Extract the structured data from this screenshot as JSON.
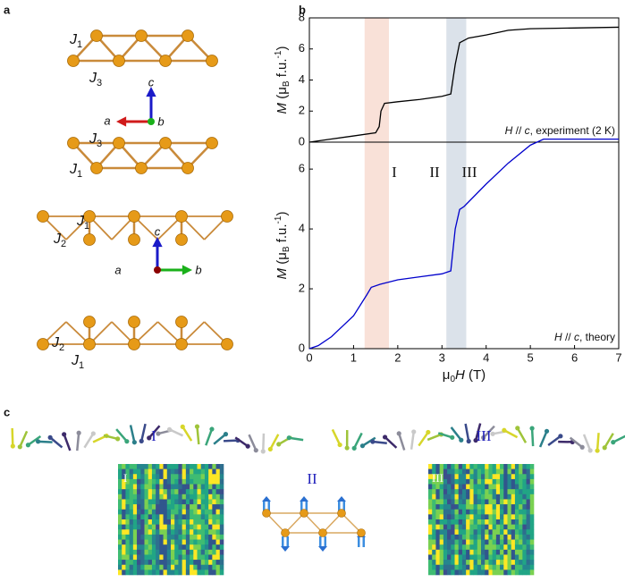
{
  "panel_labels": [
    "a",
    "b",
    "c"
  ],
  "lattice": {
    "j_labels": [
      {
        "base": "J",
        "sub": "1"
      },
      {
        "base": "J",
        "sub": "3"
      },
      {
        "base": "J",
        "sub": "3"
      },
      {
        "base": "J",
        "sub": "1"
      },
      {
        "base": "J",
        "sub": "1"
      },
      {
        "base": "J",
        "sub": "2"
      },
      {
        "base": "J",
        "sub": "2"
      },
      {
        "base": "J",
        "sub": "1"
      }
    ],
    "axis_labels": [
      "c",
      "a",
      "b",
      "c",
      "a",
      "b"
    ]
  },
  "chart_data": [
    {
      "type": "line",
      "y_label": [
        "M",
        " (μ",
        "B",
        " f.u.",
        "-1",
        ")"
      ],
      "annotation": [
        "H",
        " // ",
        "c",
        ", experiment (2 K)"
      ],
      "xlim": [
        0,
        7
      ],
      "ylim": [
        0,
        8
      ],
      "yticks": [
        0,
        2,
        4,
        6,
        8
      ],
      "regions": [
        {
          "xrange": [
            1.25,
            1.8
          ],
          "color": "#f9e1d8"
        },
        {
          "xrange": [
            3.1,
            3.55
          ],
          "color": "#dbe2ea"
        }
      ],
      "series": [
        {
          "color": "#000000",
          "x": [
            0,
            0.5,
            1,
            1.5,
            1.58,
            1.62,
            1.7,
            2,
            2.5,
            3,
            3.2,
            3.3,
            3.4,
            3.6,
            4,
            4.5,
            5,
            6,
            7
          ],
          "values": [
            0,
            0.2,
            0.4,
            0.6,
            1.0,
            2.0,
            2.5,
            2.6,
            2.75,
            2.95,
            3.1,
            5.0,
            6.4,
            6.7,
            6.9,
            7.2,
            7.3,
            7.35,
            7.4
          ]
        }
      ]
    },
    {
      "type": "line",
      "y_label": [
        "M",
        " (μ",
        "B",
        " f.u.",
        "-1",
        ")"
      ],
      "annotation": [
        "H",
        " // ",
        "c",
        ", theory"
      ],
      "x_label": [
        "μ",
        "0",
        "H",
        " (T)"
      ],
      "xlim": [
        0,
        7
      ],
      "ylim": [
        0,
        6.9
      ],
      "xticks": [
        0,
        1,
        2,
        3,
        4,
        5,
        6,
        7
      ],
      "yticks": [
        0,
        2,
        4,
        6
      ],
      "regions": [
        {
          "xrange": [
            1.25,
            1.8
          ],
          "color": "#f9e1d8"
        },
        {
          "xrange": [
            3.1,
            3.55
          ],
          "color": "#dbe2ea"
        }
      ],
      "texts": [
        "I",
        "II",
        "III"
      ],
      "series": [
        {
          "color": "#0000cc",
          "x": [
            0,
            0.2,
            0.5,
            1,
            1.3,
            1.4,
            1.6,
            2,
            2.5,
            3,
            3.2,
            3.3,
            3.4,
            3.5,
            4,
            4.5,
            5,
            5.3,
            6,
            7
          ],
          "values": [
            0,
            0.1,
            0.4,
            1.1,
            1.8,
            2.05,
            2.15,
            2.3,
            2.4,
            2.5,
            2.6,
            4.0,
            4.65,
            4.75,
            5.5,
            6.2,
            6.8,
            7.0,
            7.0,
            7.0
          ]
        }
      ]
    }
  ],
  "spin_panel": {
    "texts": [
      "I",
      "III",
      "II"
    ],
    "heatmap_labels": [
      "I",
      "III"
    ]
  }
}
